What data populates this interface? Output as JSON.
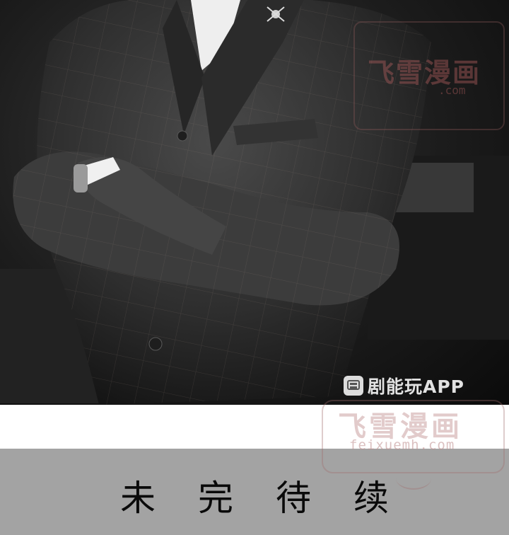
{
  "image": {
    "subject": "photo"
  },
  "watermarks": {
    "top_title": "飞雪漫画",
    "top_url": ".com",
    "app_badge": "剧能玩APP",
    "bottom_title": "飞雪漫画",
    "bottom_url": "feixuemh.com"
  },
  "caption": {
    "chars": [
      "未",
      "完",
      "待",
      "续"
    ]
  },
  "colors": {
    "band_gray": "#a3a3a3",
    "suit": "#3a3a3a",
    "shirt": "#f2f2f2"
  },
  "icons": {
    "app_icon": "app-badge-icon"
  }
}
